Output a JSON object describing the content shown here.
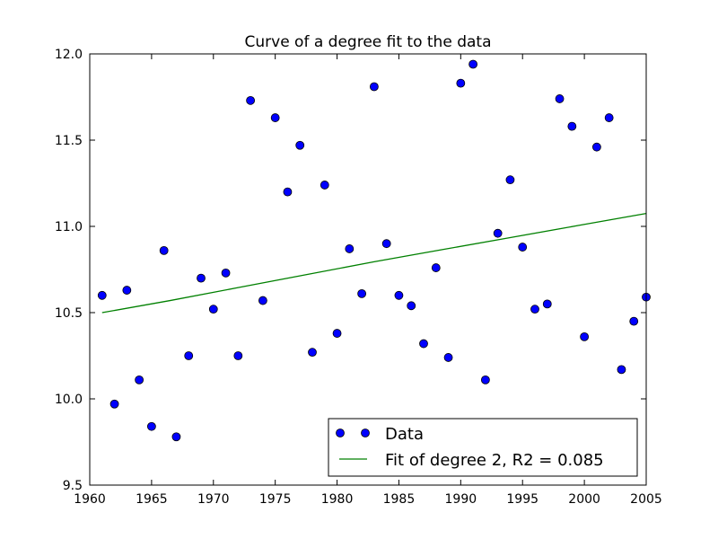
{
  "chart_data": {
    "type": "scatter",
    "title": "Curve of a degree fit to the data",
    "xlabel": "",
    "ylabel": "",
    "xlim": [
      1960,
      2005
    ],
    "ylim": [
      9.5,
      12.0
    ],
    "xticks": [
      1960,
      1965,
      1970,
      1975,
      1980,
      1985,
      1990,
      1995,
      2000,
      2005
    ],
    "yticks": [
      9.5,
      10.0,
      10.5,
      11.0,
      11.5,
      12.0
    ],
    "ytick_labels": [
      "9.5",
      "10.0",
      "10.5",
      "11.0",
      "11.5",
      "12.0"
    ],
    "grid": false,
    "legend_position": "lower-right",
    "series": [
      {
        "name": "Data",
        "kind": "points",
        "color": "#0000ff",
        "x": [
          1961,
          1962,
          1963,
          1964,
          1965,
          1966,
          1967,
          1968,
          1969,
          1970,
          1971,
          1972,
          1973,
          1974,
          1975,
          1976,
          1977,
          1978,
          1979,
          1980,
          1981,
          1982,
          1983,
          1984,
          1985,
          1986,
          1987,
          1988,
          1989,
          1990,
          1991,
          1992,
          1993,
          1994,
          1995,
          1996,
          1997,
          1998,
          1999,
          2000,
          2001,
          2002,
          2003,
          2004,
          2005
        ],
        "y": [
          10.6,
          9.97,
          10.63,
          10.11,
          9.84,
          10.86,
          9.78,
          10.25,
          10.7,
          10.52,
          10.73,
          10.25,
          11.73,
          10.57,
          11.63,
          11.2,
          11.47,
          10.27,
          11.24,
          10.38,
          10.87,
          10.61,
          11.81,
          10.9,
          10.6,
          10.54,
          10.32,
          10.76,
          10.24,
          11.83,
          11.94,
          10.11,
          10.96,
          11.27,
          10.88,
          10.52,
          10.55,
          11.74,
          11.58,
          10.36,
          11.46,
          11.63,
          10.17,
          10.45,
          10.59
        ]
      },
      {
        "name": "Fit of degree 2, R2 = 0.085",
        "kind": "line",
        "color": "#008000",
        "x": [
          1961,
          1966.5,
          1972,
          1977.5,
          1983,
          1988.5,
          1994,
          1999.5,
          2005
        ],
        "y": [
          10.5,
          10.57,
          10.645,
          10.72,
          10.795,
          10.865,
          10.935,
          11.005,
          11.075
        ]
      }
    ]
  }
}
